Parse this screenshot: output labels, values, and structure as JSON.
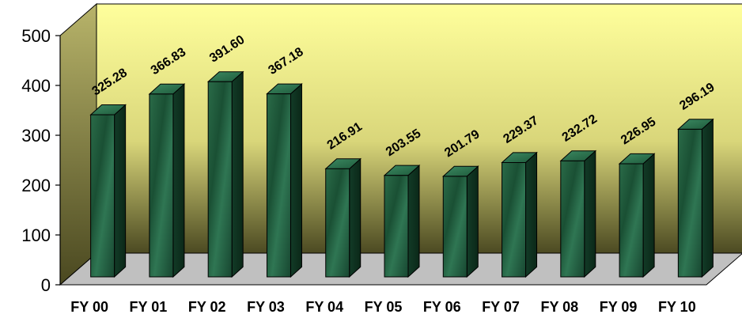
{
  "chart_data": {
    "type": "bar",
    "categories": [
      "FY 00",
      "FY 01",
      "FY 02",
      "FY 03",
      "FY 04",
      "FY 05",
      "FY 06",
      "FY 07",
      "FY 08",
      "FY 09",
      "FY 10"
    ],
    "values": [
      325.28,
      366.83,
      391.6,
      367.18,
      216.91,
      203.55,
      201.79,
      229.37,
      232.72,
      226.95,
      296.19
    ],
    "value_labels": [
      "325.28",
      "366.83",
      "391.60",
      "367.18",
      "216.91",
      "203.55",
      "201.79",
      "229.37",
      "232.72",
      "226.95",
      "296.19"
    ],
    "y_ticks": [
      0,
      100,
      200,
      300,
      400,
      500
    ],
    "ylim": [
      0,
      500
    ],
    "title": "",
    "xlabel": "",
    "ylabel": "",
    "grid": false,
    "legend": "none",
    "style": "3d-column",
    "colors": {
      "bar_face": "#1f5a3c",
      "bar_side": "#123a26",
      "bar_top": "#2f7a55",
      "wall_top": "#ffff99",
      "wall_bottom": "#5c5a2a",
      "floor": "#c0c0c0",
      "side_wall": "#8c8a55"
    }
  }
}
